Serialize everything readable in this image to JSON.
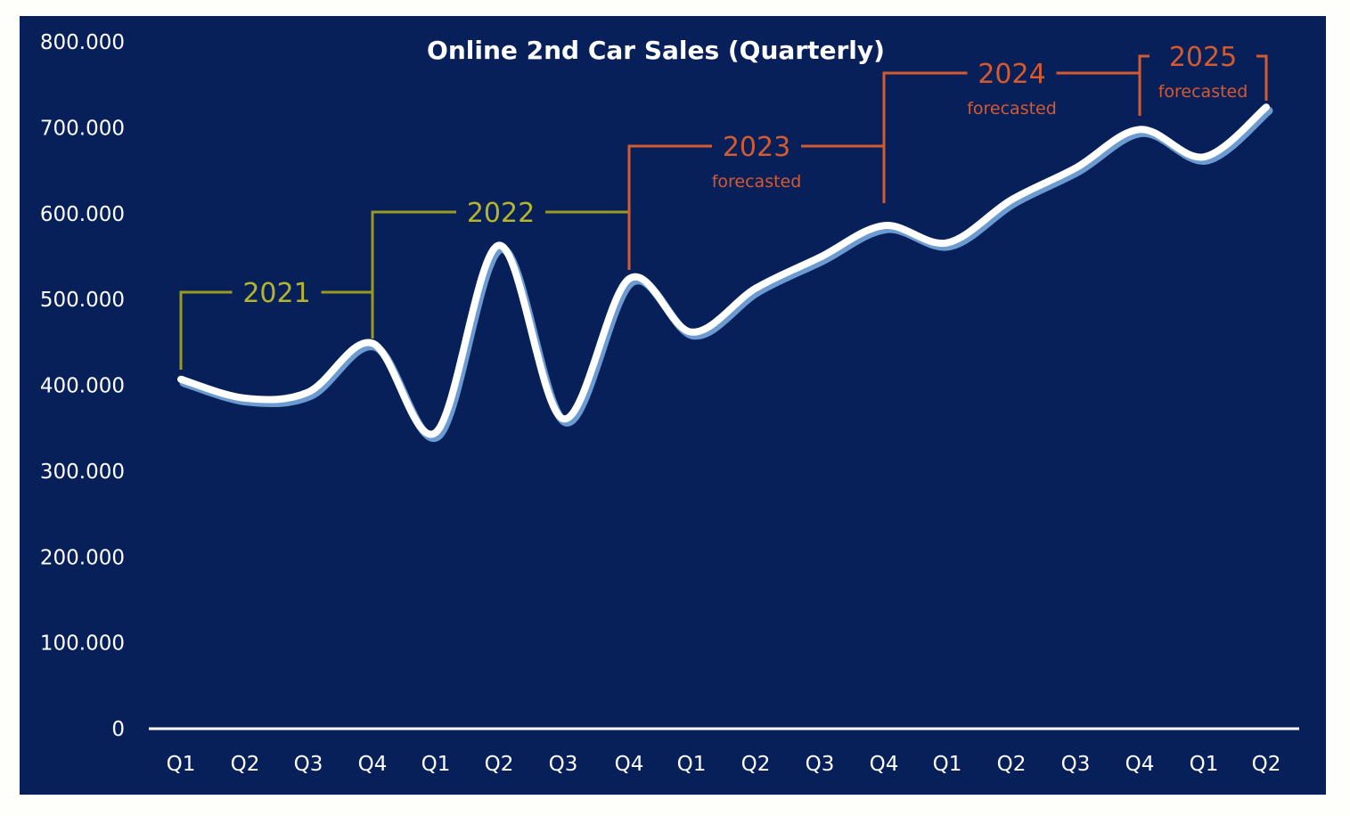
{
  "chart_data": {
    "type": "line",
    "title": "Online 2nd Car Sales (Quarterly)",
    "xlabel": "",
    "ylabel": "",
    "ylim": [
      0,
      800000
    ],
    "y_ticks": [
      0,
      100000,
      200000,
      300000,
      400000,
      500000,
      600000,
      700000,
      800000
    ],
    "y_tick_labels": [
      "0",
      "100.000",
      "200.000",
      "300.000",
      "400.000",
      "500.000",
      "600.000",
      "700.000",
      "800.000"
    ],
    "categories": [
      "Q1",
      "Q2",
      "Q3",
      "Q4",
      "Q1",
      "Q2",
      "Q3",
      "Q4",
      "Q1",
      "Q2",
      "Q3",
      "Q4",
      "Q1",
      "Q2",
      "Q3",
      "Q4",
      "Q1",
      "Q2"
    ],
    "series": [
      {
        "name": "Online 2nd Car Sales",
        "values": [
          407000,
          385000,
          392000,
          449000,
          345000,
          563000,
          361000,
          524000,
          462000,
          513000,
          549000,
          586000,
          566000,
          616000,
          653000,
          698000,
          666000,
          724000
        ]
      }
    ],
    "grid": false,
    "legend": "none",
    "year_groups": [
      {
        "label": "2021",
        "sublabel": "",
        "start": 0,
        "end": 3,
        "forecast": false
      },
      {
        "label": "2022",
        "sublabel": "",
        "start": 3,
        "end": 7,
        "forecast": false
      },
      {
        "label": "2023",
        "sublabel": "forecasted",
        "start": 7,
        "end": 11,
        "forecast": true
      },
      {
        "label": "2024",
        "sublabel": "forecasted",
        "start": 11,
        "end": 15,
        "forecast": true
      },
      {
        "label": "2025",
        "sublabel": "forecasted",
        "start": 15,
        "end": 17,
        "forecast": true
      }
    ],
    "forecast_start_index": 7
  },
  "colors": {
    "background": "#08205a",
    "line": "#ffffff",
    "line_shadow": "#6c9bd2",
    "actual": "#9a9a1e",
    "actual_text": "#b5b52a",
    "forecast": "#d45a30"
  }
}
